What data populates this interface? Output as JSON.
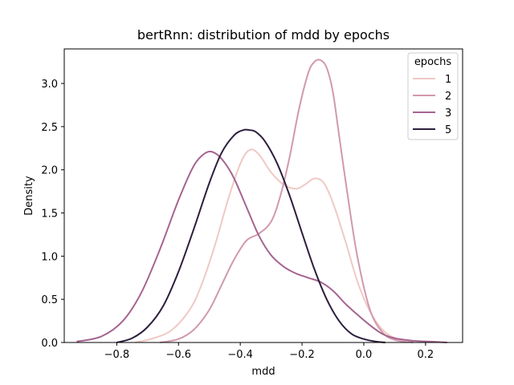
{
  "chart_data": {
    "type": "line",
    "title": "bertRnn: distribution of mdd by epochs",
    "xlabel": "mdd",
    "ylabel": "Density",
    "xlim": [
      -0.97,
      0.32
    ],
    "ylim": [
      0,
      3.4
    ],
    "xticks": [
      -0.8,
      -0.6,
      -0.4,
      -0.2,
      0.0,
      0.2
    ],
    "xtick_labels": [
      "−0.8",
      "−0.6",
      "−0.4",
      "−0.2",
      "0.0",
      "0.2"
    ],
    "yticks": [
      0.0,
      0.5,
      1.0,
      1.5,
      2.0,
      2.5,
      3.0
    ],
    "ytick_labels": [
      "0.0",
      "0.5",
      "1.0",
      "1.5",
      "2.0",
      "2.5",
      "3.0"
    ],
    "grid": false,
    "legend": {
      "title": "epochs",
      "placement": "top-right"
    },
    "series": [
      {
        "name": "1",
        "color": "#efc9c4",
        "x": [
          -0.74,
          -0.68,
          -0.62,
          -0.56,
          -0.52,
          -0.48,
          -0.44,
          -0.4,
          -0.37,
          -0.34,
          -0.3,
          -0.26,
          -0.22,
          -0.19,
          -0.16,
          -0.13,
          -0.1,
          -0.06,
          -0.02,
          0.02,
          0.06,
          0.1,
          0.14
        ],
        "y": [
          0.0,
          0.05,
          0.15,
          0.4,
          0.72,
          1.15,
          1.65,
          2.07,
          2.23,
          2.18,
          1.97,
          1.83,
          1.78,
          1.83,
          1.9,
          1.85,
          1.62,
          1.18,
          0.7,
          0.36,
          0.15,
          0.05,
          0.0
        ]
      },
      {
        "name": "2",
        "color": "#d199ac",
        "x": [
          -0.66,
          -0.6,
          -0.55,
          -0.5,
          -0.46,
          -0.42,
          -0.38,
          -0.34,
          -0.3,
          -0.27,
          -0.24,
          -0.21,
          -0.18,
          -0.16,
          -0.14,
          -0.12,
          -0.1,
          -0.08,
          -0.05,
          -0.02,
          0.02,
          0.06,
          0.1,
          0.16
        ],
        "y": [
          0.0,
          0.04,
          0.15,
          0.38,
          0.67,
          0.96,
          1.18,
          1.26,
          1.4,
          1.7,
          2.15,
          2.7,
          3.12,
          3.25,
          3.27,
          3.18,
          2.9,
          2.4,
          1.65,
          0.98,
          0.38,
          0.12,
          0.03,
          0.0
        ]
      },
      {
        "name": "3",
        "color": "#a5648f",
        "x": [
          -0.93,
          -0.85,
          -0.78,
          -0.72,
          -0.66,
          -0.6,
          -0.55,
          -0.51,
          -0.48,
          -0.45,
          -0.42,
          -0.38,
          -0.34,
          -0.3,
          -0.26,
          -0.22,
          -0.18,
          -0.14,
          -0.1,
          -0.06,
          -0.02,
          0.02,
          0.06,
          0.1,
          0.16,
          0.22,
          0.27
        ],
        "y": [
          0.01,
          0.07,
          0.25,
          0.58,
          1.08,
          1.65,
          2.05,
          2.2,
          2.19,
          2.08,
          1.9,
          1.57,
          1.24,
          1.01,
          0.88,
          0.8,
          0.75,
          0.7,
          0.6,
          0.45,
          0.32,
          0.2,
          0.1,
          0.05,
          0.02,
          0.01,
          0.0
        ]
      },
      {
        "name": "5",
        "color": "#2d1e3e",
        "x": [
          -0.8,
          -0.75,
          -0.7,
          -0.65,
          -0.6,
          -0.55,
          -0.5,
          -0.46,
          -0.42,
          -0.39,
          -0.37,
          -0.35,
          -0.32,
          -0.28,
          -0.24,
          -0.2,
          -0.16,
          -0.12,
          -0.08,
          -0.04,
          0.0,
          0.04,
          0.07
        ],
        "y": [
          0.0,
          0.05,
          0.18,
          0.42,
          0.82,
          1.32,
          1.85,
          2.2,
          2.4,
          2.46,
          2.46,
          2.44,
          2.33,
          2.07,
          1.7,
          1.27,
          0.85,
          0.5,
          0.25,
          0.1,
          0.04,
          0.01,
          0.0
        ]
      }
    ]
  }
}
